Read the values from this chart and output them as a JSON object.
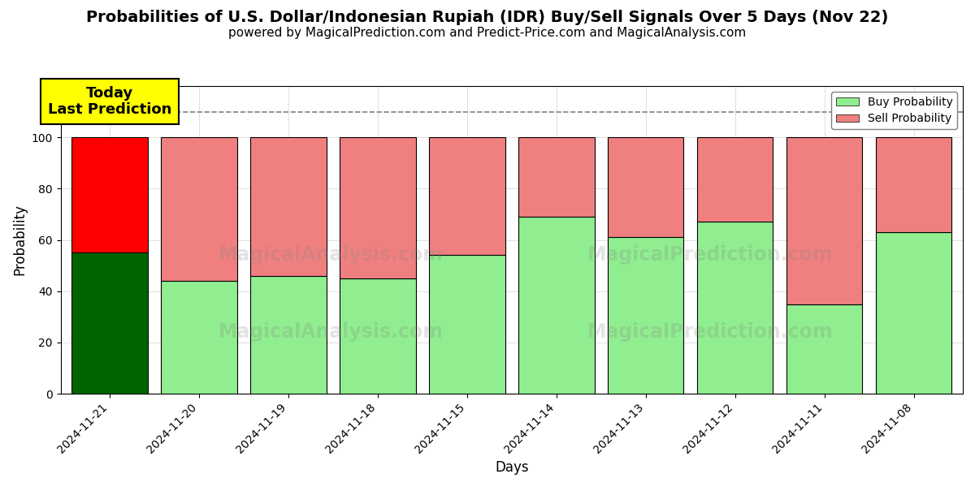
{
  "title": "Probabilities of U.S. Dollar/Indonesian Rupiah (IDR) Buy/Sell Signals Over 5 Days (Nov 22)",
  "subtitle": "powered by MagicalPrediction.com and Predict-Price.com and MagicalAnalysis.com",
  "xlabel": "Days",
  "ylabel": "Probability",
  "dates": [
    "2024-11-21",
    "2024-11-20",
    "2024-11-19",
    "2024-11-18",
    "2024-11-15",
    "2024-11-14",
    "2024-11-13",
    "2024-11-12",
    "2024-11-11",
    "2024-11-08"
  ],
  "buy_values": [
    55,
    44,
    46,
    45,
    54,
    69,
    61,
    67,
    35,
    63
  ],
  "sell_values": [
    45,
    56,
    54,
    55,
    46,
    31,
    39,
    33,
    65,
    37
  ],
  "today_buy_color": "#006400",
  "today_sell_color": "#ff0000",
  "buy_color": "#90ee90",
  "sell_color": "#f08080",
  "today_annotation_bg": "#ffff00",
  "today_annotation_text": "Today\nLast Prediction",
  "legend_buy_label": "Buy Probability",
  "legend_sell_label": "Sell Probability",
  "dashed_line_y": 110,
  "ylim": [
    0,
    120
  ],
  "yticks": [
    0,
    20,
    40,
    60,
    80,
    100
  ],
  "bar_width": 0.85,
  "title_fontsize": 14,
  "subtitle_fontsize": 11,
  "axis_label_fontsize": 12,
  "tick_fontsize": 10,
  "legend_fontsize": 10,
  "annotation_fontsize": 13
}
